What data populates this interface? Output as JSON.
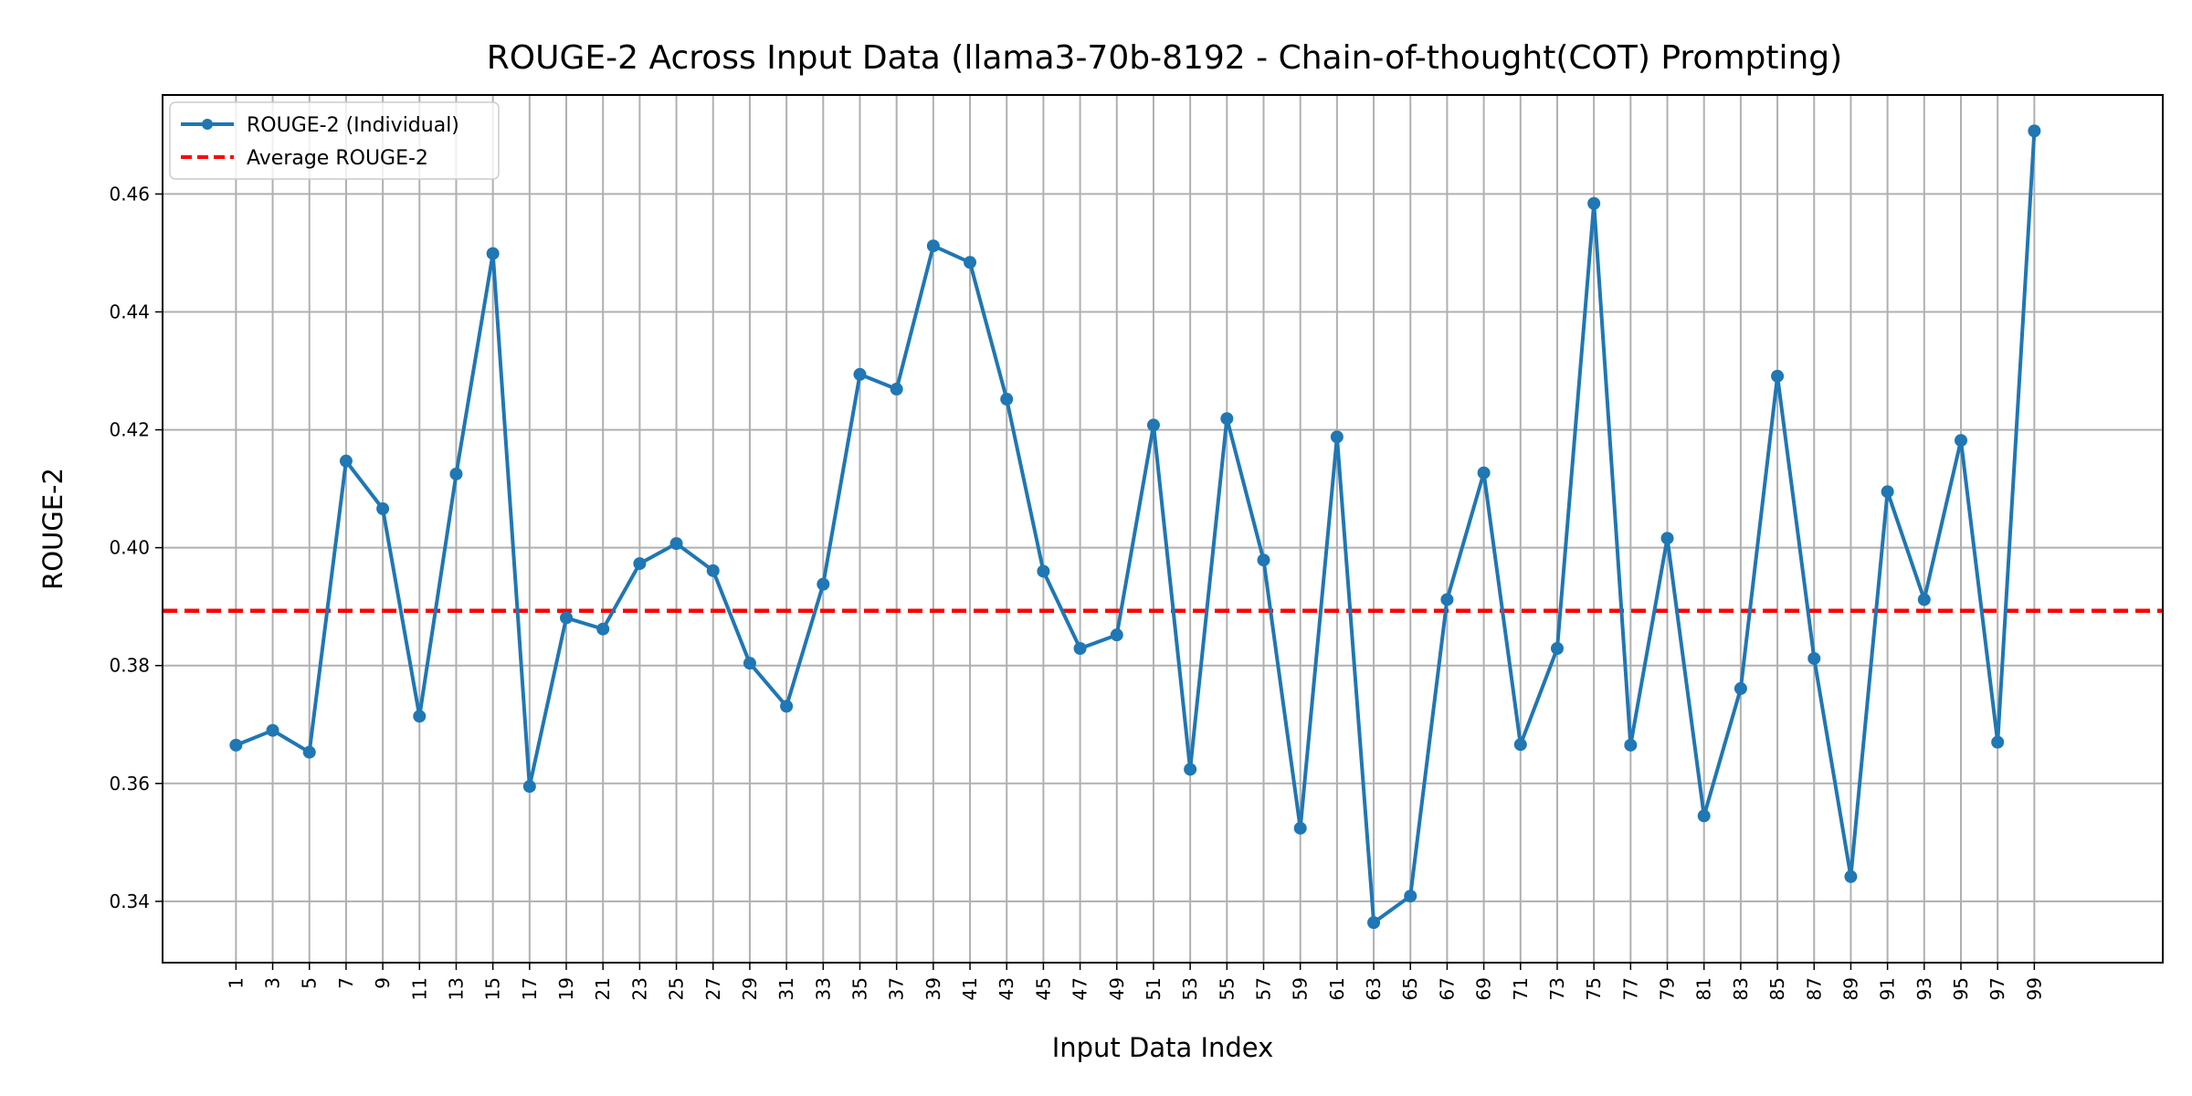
{
  "chart_data": {
    "type": "line",
    "title": "ROUGE-2 Across Input Data (llama3-70b-8192 - Chain-of-thought(COT) Prompting)",
    "xlabel": "Input Data Index",
    "ylabel": "ROUGE-2",
    "x": [
      1,
      3,
      5,
      7,
      9,
      11,
      13,
      15,
      17,
      19,
      21,
      23,
      25,
      27,
      29,
      31,
      33,
      35,
      37,
      39,
      41,
      43,
      45,
      47,
      49,
      51,
      53,
      55,
      57,
      59,
      61,
      63,
      65,
      67,
      69,
      71,
      73,
      75,
      77,
      79,
      81,
      83,
      85,
      87,
      89,
      91,
      93,
      95,
      97,
      99
    ],
    "xlim": [
      -3,
      106
    ],
    "ylim": [
      0.3296,
      0.4768
    ],
    "yticks": [
      0.34,
      0.36,
      0.38,
      0.4,
      0.42,
      0.44,
      0.46
    ],
    "ytick_labels": [
      "0.34",
      "0.36",
      "0.38",
      "0.40",
      "0.42",
      "0.44",
      "0.46"
    ],
    "grid": true,
    "legend_position": "top-left",
    "series": [
      {
        "name": "ROUGE-2 (Individual)",
        "color": "#1f77b4",
        "style": "solid-with-markers",
        "values": [
          0.3665,
          0.369,
          0.3653,
          0.4147,
          0.4066,
          0.3714,
          0.4125,
          0.4499,
          0.3595,
          0.3881,
          0.3862,
          0.3973,
          0.4007,
          0.3961,
          0.3804,
          0.3731,
          0.3938,
          0.4294,
          0.4269,
          0.4512,
          0.4484,
          0.4252,
          0.396,
          0.3829,
          0.3852,
          0.4208,
          0.3624,
          0.4219,
          0.3979,
          0.3524,
          0.4188,
          0.3364,
          0.3409,
          0.3912,
          0.4127,
          0.3666,
          0.3829,
          0.4584,
          0.3665,
          0.4016,
          0.3545,
          0.3761,
          0.4291,
          0.3812,
          0.3442,
          0.4095,
          0.3912,
          0.4182,
          0.367,
          0.4707
        ]
      },
      {
        "name": "Average ROUGE-2",
        "color": "#ff0000",
        "style": "dashed",
        "value": 0.3893
      }
    ]
  }
}
